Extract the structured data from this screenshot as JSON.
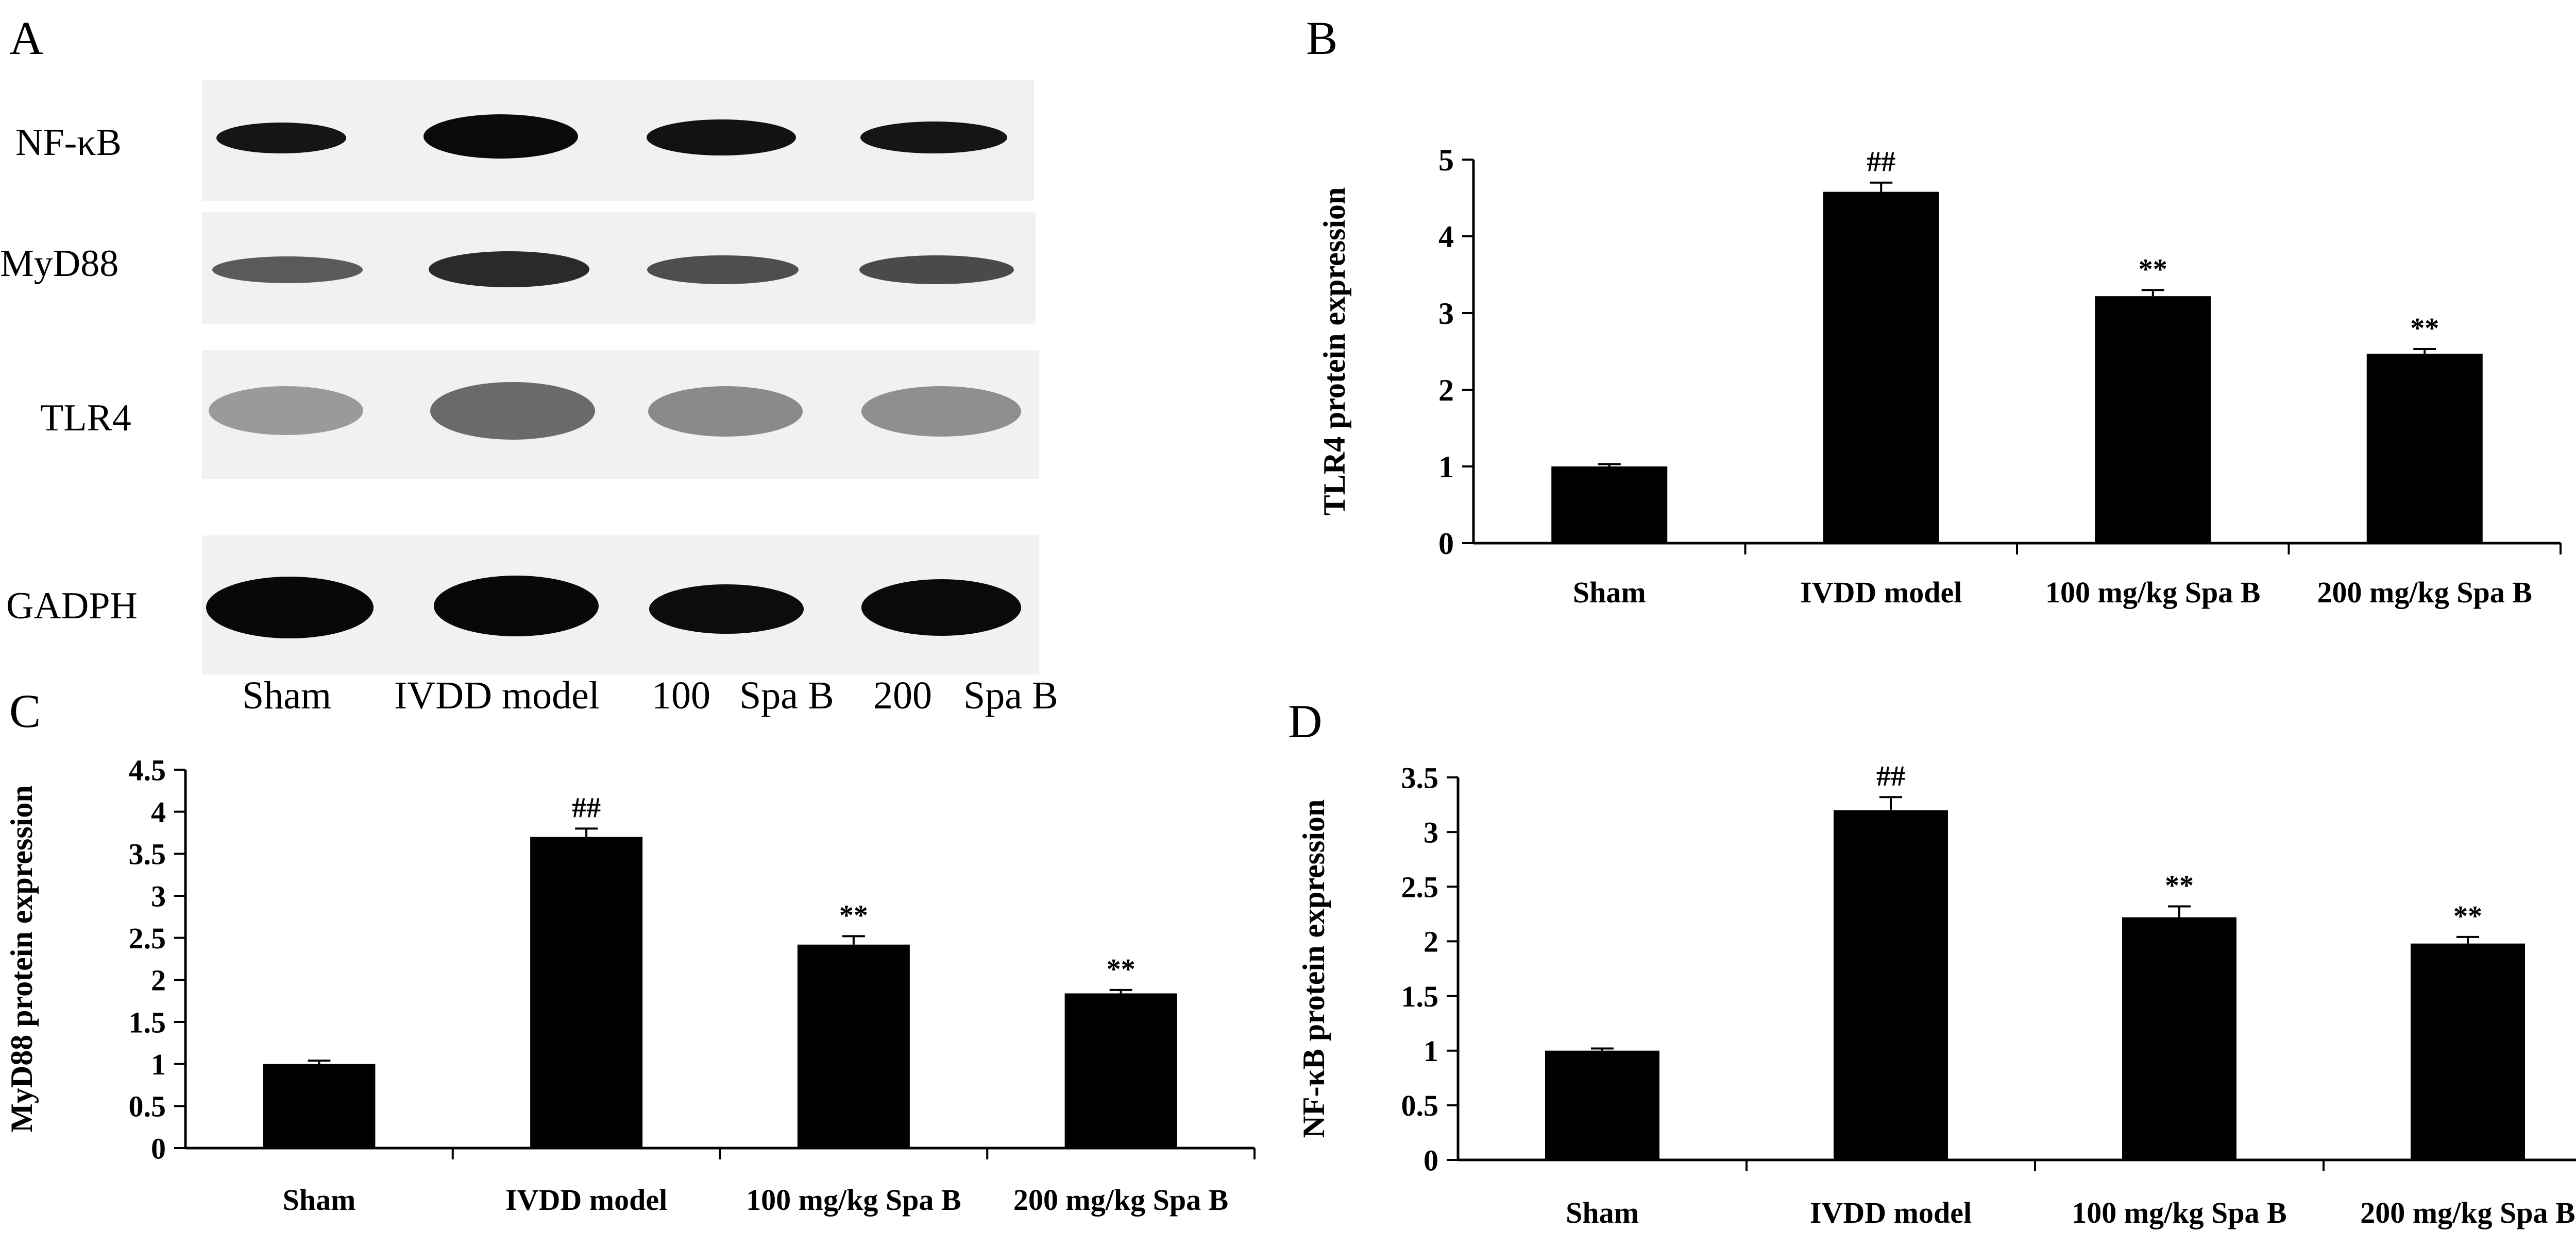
{
  "panel_labels": {
    "a": "A",
    "b": "B",
    "c": "C",
    "d": "D"
  },
  "blot": {
    "rows": [
      "NF-κB",
      "MyD88",
      "TLR4",
      "GADPH"
    ],
    "lanes": [
      "Sham",
      "IVDD model",
      "100",
      "Spa B",
      "200",
      "Spa B"
    ]
  },
  "chart_data": [
    {
      "type": "bar",
      "panel": "B",
      "categories": [
        "Sham",
        "IVDD model",
        "100 mg/kg Spa B",
        "200 mg/kg Spa B"
      ],
      "values": [
        1.0,
        4.58,
        3.22,
        2.47
      ],
      "errors": [
        0.03,
        0.12,
        0.08,
        0.06
      ],
      "annotations": [
        "",
        "##",
        "**",
        "**"
      ],
      "xlabel": "",
      "ylabel": "TLR4 protein expression",
      "ylim": [
        0,
        5
      ],
      "yticks": [
        "0",
        "1",
        "2",
        "3",
        "4",
        "5"
      ],
      "grid": false,
      "bar_color": "#000000"
    },
    {
      "type": "bar",
      "panel": "C",
      "categories": [
        "Sham",
        "IVDD model",
        "100 mg/kg Spa B",
        "200 mg/kg Spa B"
      ],
      "values": [
        1.0,
        3.7,
        2.42,
        1.84
      ],
      "errors": [
        0.04,
        0.1,
        0.1,
        0.04
      ],
      "annotations": [
        "",
        "##",
        "**",
        "**"
      ],
      "xlabel": "",
      "ylabel": "MyD88 protein expression",
      "ylim": [
        0,
        4.5
      ],
      "yticks": [
        "0",
        "0.5",
        "1",
        "1.5",
        "2",
        "2.5",
        "3",
        "3.5",
        "4",
        "4.5"
      ],
      "grid": false,
      "bar_color": "#000000"
    },
    {
      "type": "bar",
      "panel": "D",
      "categories": [
        "Sham",
        "IVDD model",
        "100 mg/kg Spa B",
        "200 mg/kg Spa B"
      ],
      "values": [
        1.0,
        3.2,
        2.22,
        1.98
      ],
      "errors": [
        0.02,
        0.12,
        0.1,
        0.06
      ],
      "annotations": [
        "",
        "##",
        "**",
        "**"
      ],
      "xlabel": "",
      "ylabel": "NF-κB protein expression",
      "ylim": [
        0,
        3.5
      ],
      "yticks": [
        "0",
        "0.5",
        "1",
        "1.5",
        "2",
        "2.5",
        "3",
        "3.5"
      ],
      "grid": false,
      "bar_color": "#000000"
    }
  ]
}
